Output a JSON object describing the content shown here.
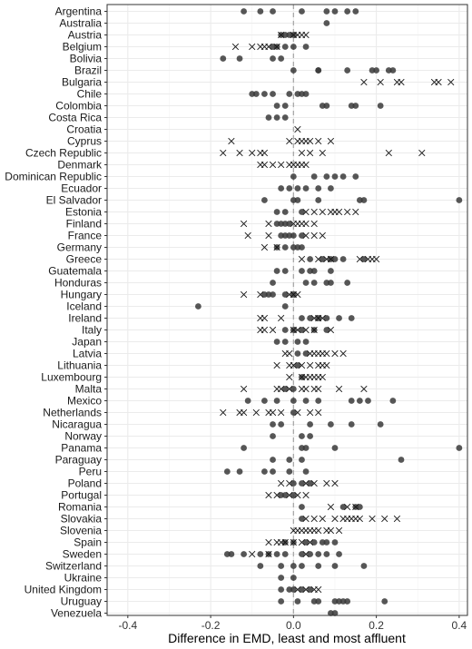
{
  "chart_data": {
    "type": "scatter",
    "xlabel": "Difference in EMD, least and most affluent",
    "ylabel": "",
    "xlim": [
      -0.45,
      0.42
    ],
    "xticks": [
      -0.4,
      -0.2,
      0.0,
      0.2,
      0.4
    ],
    "xtick_labels": [
      "-0.4",
      "-0.2",
      "0.0",
      "0.2",
      "0.4"
    ],
    "reference_line_x": 0,
    "grid": true,
    "legend": "none",
    "colors": {
      "circle": "#3a3a3a",
      "cross": "#111111",
      "grid": "#ebebeb",
      "zero_line": "#aaaaaa",
      "border": "#333333"
    },
    "categories": [
      "Argentina",
      "Australia",
      "Austria",
      "Belgium",
      "Bolivia",
      "Brazil",
      "Bulgaria",
      "Chile",
      "Colombia",
      "Costa Rica",
      "Croatia",
      "Cyprus",
      "Czech Republic",
      "Denmark",
      "Dominican Republic",
      "Ecuador",
      "El Salvador",
      "Estonia",
      "Finland",
      "France",
      "Germany",
      "Greece",
      "Guatemala",
      "Honduras",
      "Hungary",
      "Iceland",
      "Ireland",
      "Italy",
      "Japan",
      "Latvia",
      "Lithuania",
      "Luxembourg",
      "Malta",
      "Mexico",
      "Netherlands",
      "Nicaragua",
      "Norway",
      "Panama",
      "Paraguay",
      "Peru",
      "Poland",
      "Portugal",
      "Romania",
      "Slovakia",
      "Slovenia",
      "Spain",
      "Sweden",
      "Switzerland",
      "Ukraine",
      "United Kingdom",
      "Uruguay",
      "Venezuela"
    ],
    "series": [
      {
        "marker": "circle",
        "points": {
          "Argentina": [
            -0.12,
            -0.08,
            -0.05,
            0.02,
            0.08,
            0.1,
            0.13,
            0.15
          ],
          "Australia": [
            0.08
          ],
          "Austria": [
            -0.03,
            -0.02,
            -0.01,
            0.0
          ],
          "Belgium": [
            -0.05,
            -0.04,
            -0.02,
            0.0,
            0.03
          ],
          "Bolivia": [
            -0.17,
            -0.13,
            -0.05,
            -0.03
          ],
          "Brazil": [
            0.0,
            0.06,
            0.06,
            0.13,
            0.19,
            0.2,
            0.23,
            0.24
          ],
          "Chile": [
            -0.1,
            -0.09,
            -0.07,
            -0.05,
            -0.01,
            0.01,
            0.02,
            0.03
          ],
          "Colombia": [
            -0.04,
            -0.02,
            0.07,
            0.08,
            0.14,
            0.15,
            0.21
          ],
          "Costa Rica": [
            -0.06,
            -0.04,
            -0.02
          ],
          "Dominican Republic": [
            0.0,
            0.05,
            0.08,
            0.1,
            0.12,
            0.15
          ],
          "Ecuador": [
            -0.03,
            -0.01,
            0.01,
            0.03,
            0.06,
            0.09
          ],
          "El Salvador": [
            -0.07,
            0.0,
            0.01,
            0.06,
            0.16,
            0.17,
            0.4
          ],
          "Estonia": [
            -0.04,
            -0.02,
            0.02
          ],
          "Finland": [
            -0.04,
            -0.03,
            -0.02,
            -0.01
          ],
          "France": [
            -0.03,
            -0.02,
            -0.01,
            0.0,
            0.02
          ],
          "Germany": [
            -0.04,
            -0.02,
            0.0,
            0.01,
            0.02
          ],
          "Greece": [
            0.04,
            0.07,
            0.09,
            0.1,
            0.12,
            0.17
          ],
          "Guatemala": [
            -0.04,
            -0.02,
            0.02,
            0.04,
            0.05,
            0.09
          ],
          "Honduras": [
            -0.05,
            0.03,
            0.05,
            0.08,
            0.09,
            0.13
          ],
          "Hungary": [
            -0.07,
            -0.06,
            -0.05,
            -0.02,
            0.0
          ],
          "Iceland": [
            -0.23,
            -0.02
          ],
          "Ireland": [
            0.02,
            0.04,
            0.06,
            0.08,
            0.11,
            0.14
          ],
          "Italy": [
            -0.02,
            0.0,
            0.02,
            0.05,
            0.08
          ],
          "Japan": [
            -0.04,
            -0.02,
            0.01,
            0.03
          ],
          "Latvia": [
            0.01,
            0.03
          ],
          "Lithuania": [
            0.01
          ],
          "Luxembourg": [
            0.02
          ],
          "Malta": [
            -0.02,
            0.0
          ],
          "Mexico": [
            -0.11,
            -0.07,
            -0.04,
            0.0,
            0.03,
            0.06,
            0.14,
            0.16,
            0.18,
            0.24
          ],
          "Netherlands": [
            0.0
          ],
          "Nicaragua": [
            -0.05,
            -0.03,
            0.04,
            0.09,
            0.14,
            0.21
          ],
          "Norway": [
            -0.05,
            0.02,
            0.04
          ],
          "Panama": [
            -0.12,
            0.02,
            0.03,
            0.1,
            0.4
          ],
          "Paraguay": [
            -0.05,
            -0.01,
            0.02,
            0.26
          ],
          "Peru": [
            -0.16,
            -0.13,
            -0.07,
            -0.05,
            -0.01,
            0.03
          ],
          "Poland": [
            0.0,
            0.02,
            0.04
          ],
          "Portugal": [
            -0.03,
            -0.02,
            0.0
          ],
          "Romania": [
            0.02,
            0.12,
            0.15,
            0.16
          ],
          "Slovakia": [
            0.02
          ],
          "Spain": [
            -0.02,
            0.0,
            0.03,
            0.05,
            0.07,
            0.08,
            0.1
          ],
          "Sweden": [
            -0.16,
            -0.15,
            -0.12,
            -0.08,
            -0.06,
            -0.04,
            -0.02,
            0.02,
            0.04,
            0.06,
            0.08,
            0.11
          ],
          "Switzerland": [
            -0.08,
            -0.03,
            0.0,
            0.02,
            0.06,
            0.1,
            0.17
          ],
          "Ukraine": [
            -0.03,
            0.0
          ],
          "United Kingdom": [
            -0.03,
            -0.01,
            0.0,
            0.02,
            0.04
          ],
          "Uruguay": [
            -0.03,
            0.01,
            0.05,
            0.06,
            0.1,
            0.11,
            0.12,
            0.13,
            0.22
          ],
          "Venezuela": [
            0.09,
            0.1
          ]
        }
      },
      {
        "marker": "cross",
        "points": {
          "Austria": [
            -0.03,
            0.0,
            0.01,
            0.02,
            0.03
          ],
          "Belgium": [
            -0.14,
            -0.1,
            -0.08,
            -0.07,
            -0.06,
            -0.04
          ],
          "Bulgaria": [
            0.17,
            0.21,
            0.25,
            0.26,
            0.34,
            0.35,
            0.38
          ],
          "Croatia": [
            0.01
          ],
          "Cyprus": [
            -0.15,
            -0.01,
            0.01,
            0.02,
            0.03,
            0.04,
            0.06,
            0.09
          ],
          "Czech Republic": [
            -0.17,
            -0.13,
            -0.1,
            -0.08,
            -0.07,
            0.02,
            0.04,
            0.07,
            0.23,
            0.31
          ],
          "Denmark": [
            -0.08,
            -0.07,
            -0.05,
            -0.03,
            -0.01,
            0.0,
            0.01,
            0.02,
            0.03
          ],
          "Estonia": [
            0.03,
            0.05,
            0.07,
            0.09,
            0.1,
            0.11,
            0.13,
            0.15
          ],
          "Finland": [
            -0.12,
            -0.06,
            0.0,
            0.01,
            0.02,
            0.03,
            0.05
          ],
          "France": [
            -0.11,
            -0.06,
            0.03,
            0.05,
            0.07
          ],
          "Germany": [
            -0.07,
            -0.04
          ],
          "Greece": [
            0.02,
            0.06,
            0.08,
            0.09,
            0.16,
            0.18,
            0.19,
            0.2
          ],
          "Hungary": [
            -0.12,
            -0.08,
            -0.01,
            0.0,
            0.01
          ],
          "Ireland": [
            -0.08,
            -0.07,
            -0.03,
            0.05,
            0.06,
            0.07
          ],
          "Italy": [
            -0.08,
            -0.07,
            -0.05,
            0.0,
            0.01,
            0.03,
            0.05,
            0.09
          ],
          "Latvia": [
            -0.02,
            -0.01,
            0.04,
            0.05,
            0.06,
            0.07,
            0.08,
            0.1,
            0.12
          ],
          "Lithuania": [
            -0.04,
            -0.01,
            0.0,
            0.02,
            0.04,
            0.06,
            0.07,
            0.08
          ],
          "Luxembourg": [
            -0.01,
            0.02,
            0.03,
            0.04,
            0.05,
            0.06,
            0.07
          ],
          "Malta": [
            -0.12,
            -0.04,
            -0.03,
            -0.01,
            0.02,
            0.03,
            0.05,
            0.06,
            0.11,
            0.17
          ],
          "Netherlands": [
            -0.17,
            -0.13,
            -0.12,
            -0.09,
            -0.06,
            -0.05,
            -0.03,
            0.01,
            0.04,
            0.06
          ],
          "Poland": [
            -0.03,
            -0.01,
            0.03,
            0.05,
            0.08,
            0.1
          ],
          "Portugal": [
            -0.06,
            -0.04,
            -0.01,
            0.01,
            0.03
          ],
          "Romania": [
            0.09,
            0.13,
            0.15
          ],
          "Slovakia": [
            0.03,
            0.05,
            0.07,
            0.1,
            0.12,
            0.13,
            0.14,
            0.15,
            0.16,
            0.19,
            0.22,
            0.25
          ],
          "Slovenia": [
            0.0,
            0.01,
            0.02,
            0.03,
            0.04,
            0.05,
            0.06,
            0.08,
            0.09,
            0.11
          ],
          "Spain": [
            -0.06,
            -0.04,
            -0.03,
            -0.02,
            0.0,
            0.02,
            0.04
          ],
          "Sweden": [
            -0.1,
            -0.06,
            0.03
          ],
          "United Kingdom": [
            0.01,
            0.03,
            0.05,
            0.06
          ]
        }
      }
    ]
  }
}
